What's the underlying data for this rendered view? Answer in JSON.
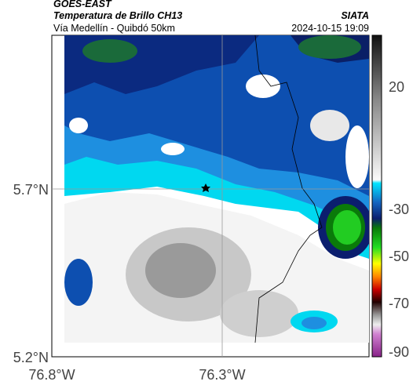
{
  "header": {
    "satellite": "GOES-EAST",
    "title": "Temperatura de Brillo CH13",
    "location": "Vía Medellín - Quibdó 50km",
    "source": "SIATA",
    "timestamp": "2024-10-15 19:09"
  },
  "axes": {
    "y_ticks": [
      "5.7°N",
      "5.2°N"
    ],
    "x_ticks": [
      "76.8°W",
      "76.3°W"
    ]
  },
  "colorbar": {
    "ticks": [
      "20",
      "-30",
      "-50",
      "-70",
      "-90"
    ]
  }
}
